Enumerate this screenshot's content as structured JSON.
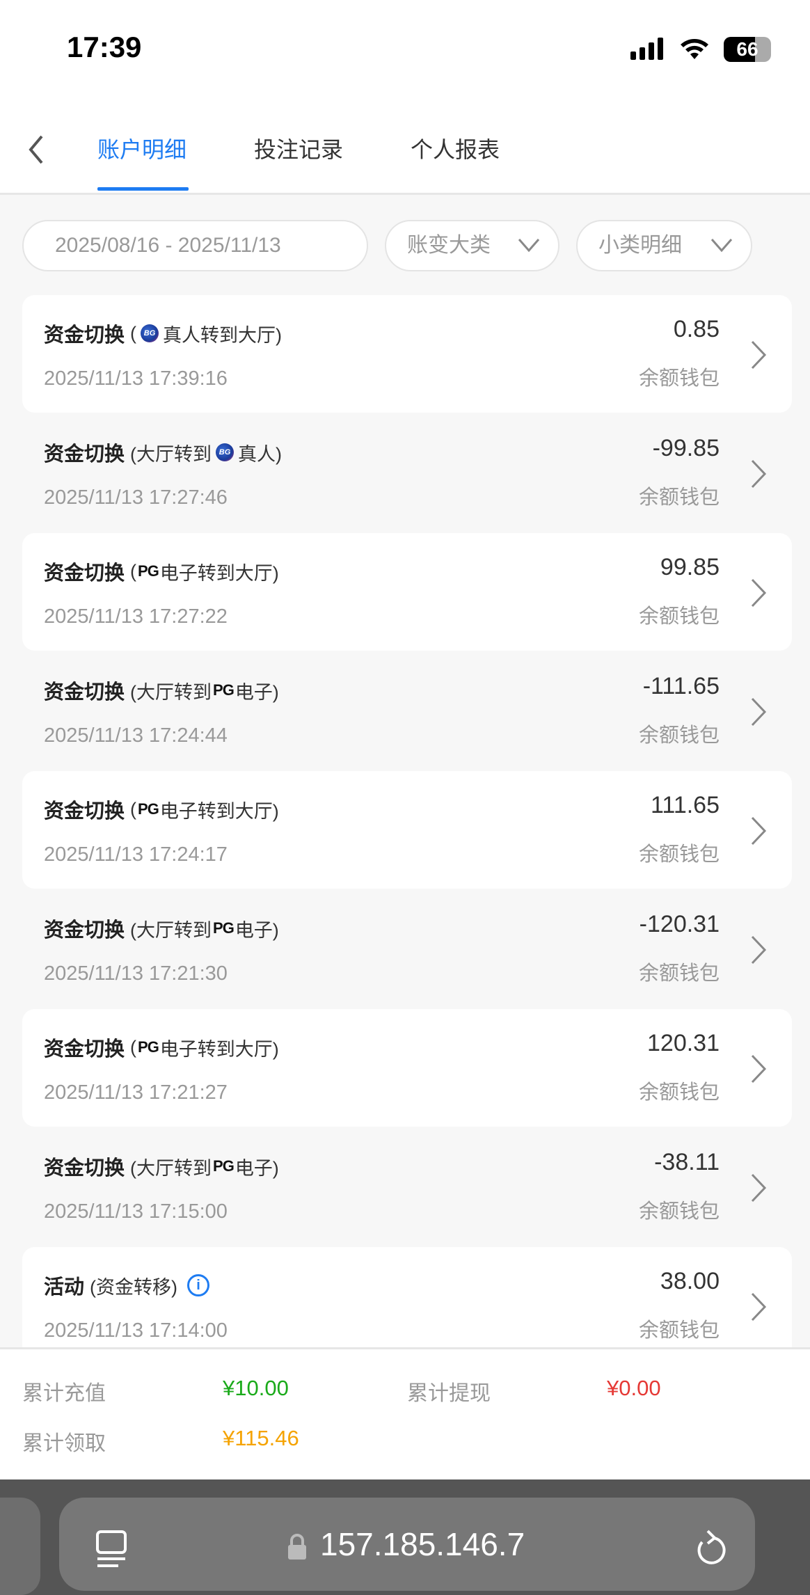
{
  "status_bar": {
    "time": "17:39",
    "battery": "66"
  },
  "header": {
    "tabs": [
      {
        "label": "账户明细",
        "active": true
      },
      {
        "label": "投注记录",
        "active": false
      },
      {
        "label": "个人报表",
        "active": false
      }
    ]
  },
  "filters": {
    "date_range": "2025/08/16 - 2025/11/13",
    "category": "账变大类",
    "subcategory": "小类明细"
  },
  "records": [
    {
      "type": "资金切换",
      "before": "(",
      "logo": "BG",
      "after": "真人转到大厅)",
      "time": "2025/11/13 17:39:16",
      "amount": "0.85",
      "wallet": "余额钱包"
    },
    {
      "type": "资金切换",
      "before": "(大厅转到",
      "logo": "BG",
      "after": "真人)",
      "time": "2025/11/13 17:27:46",
      "amount": "-99.85",
      "wallet": "余额钱包"
    },
    {
      "type": "资金切换",
      "before": "(",
      "logo": "PG",
      "after": "电子转到大厅)",
      "time": "2025/11/13 17:27:22",
      "amount": "99.85",
      "wallet": "余额钱包"
    },
    {
      "type": "资金切换",
      "before": "(大厅转到",
      "logo": "PG",
      "after": "电子)",
      "time": "2025/11/13 17:24:44",
      "amount": "-111.65",
      "wallet": "余额钱包"
    },
    {
      "type": "资金切换",
      "before": "(",
      "logo": "PG",
      "after": "电子转到大厅)",
      "time": "2025/11/13 17:24:17",
      "amount": "111.65",
      "wallet": "余额钱包"
    },
    {
      "type": "资金切换",
      "before": "(大厅转到",
      "logo": "PG",
      "after": "电子)",
      "time": "2025/11/13 17:21:30",
      "amount": "-120.31",
      "wallet": "余额钱包"
    },
    {
      "type": "资金切换",
      "before": "(",
      "logo": "PG",
      "after": "电子转到大厅)",
      "time": "2025/11/13 17:21:27",
      "amount": "120.31",
      "wallet": "余额钱包"
    },
    {
      "type": "资金切换",
      "before": "(大厅转到",
      "logo": "PG",
      "after": "电子)",
      "time": "2025/11/13 17:15:00",
      "amount": "-38.11",
      "wallet": "余额钱包"
    },
    {
      "type": "活动",
      "before": "(资金转移)",
      "logo": "",
      "after": "",
      "info": true,
      "time": "2025/11/13 17:14:00",
      "amount": "38.00",
      "wallet": "余额钱包"
    }
  ],
  "summary": {
    "deposit_label": "累计充值",
    "deposit_value": "¥10.00",
    "withdraw_label": "累计提现",
    "withdraw_value": "¥0.00",
    "claimed_label": "累计领取",
    "claimed_value": "¥115.46"
  },
  "colors": {
    "accent": "#1e7cf2",
    "deposit": "#1aaa1a",
    "withdraw": "#e53935",
    "claimed": "#f5a300"
  },
  "browser": {
    "url": "157.185.146.7"
  }
}
